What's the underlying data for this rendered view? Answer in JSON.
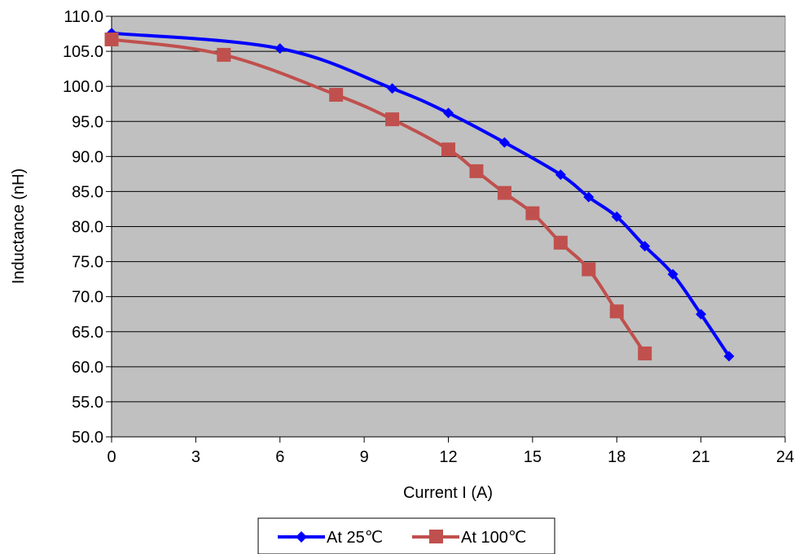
{
  "chart_data": {
    "type": "line",
    "title": "",
    "xlabel": "Current I (A)",
    "ylabel": "Inductance (nH)",
    "xlim": [
      0,
      24
    ],
    "ylim": [
      50,
      110
    ],
    "x_ticks": [
      0,
      3,
      6,
      9,
      12,
      15,
      18,
      21,
      24
    ],
    "x_tick_labels": [
      "0",
      "3",
      "6",
      "9",
      "12",
      "15",
      "18",
      "21",
      "24"
    ],
    "y_ticks": [
      50,
      55,
      60,
      65,
      70,
      75,
      80,
      85,
      90,
      95,
      100,
      105,
      110
    ],
    "y_tick_labels": [
      "50.0",
      "55.0",
      "60.0",
      "65.0",
      "70.0",
      "75.0",
      "80.0",
      "85.0",
      "90.0",
      "95.0",
      "100.0",
      "105.0",
      "110.0"
    ],
    "grid": "horizontal",
    "legend_position": "bottom",
    "colors": {
      "plot_background": "#c0c0c0",
      "grid": "#000000"
    },
    "series": [
      {
        "name": "At 25℃",
        "color": "#0000ff",
        "marker": "diamond",
        "x": [
          0,
          6,
          10,
          12,
          14,
          16,
          17,
          18,
          19,
          20,
          21,
          22
        ],
        "y": [
          107.6,
          105.4,
          99.7,
          96.2,
          92.0,
          87.4,
          84.2,
          81.4,
          77.2,
          73.2,
          67.5,
          61.5
        ]
      },
      {
        "name": "At 100℃",
        "color": "#c0504d",
        "marker": "square",
        "x": [
          0,
          4,
          8,
          10,
          12,
          13,
          14,
          15,
          16,
          17,
          18,
          19
        ],
        "y": [
          106.7,
          104.5,
          98.8,
          95.3,
          91.0,
          87.9,
          84.8,
          81.9,
          77.7,
          73.9,
          67.9,
          61.9
        ]
      }
    ]
  }
}
